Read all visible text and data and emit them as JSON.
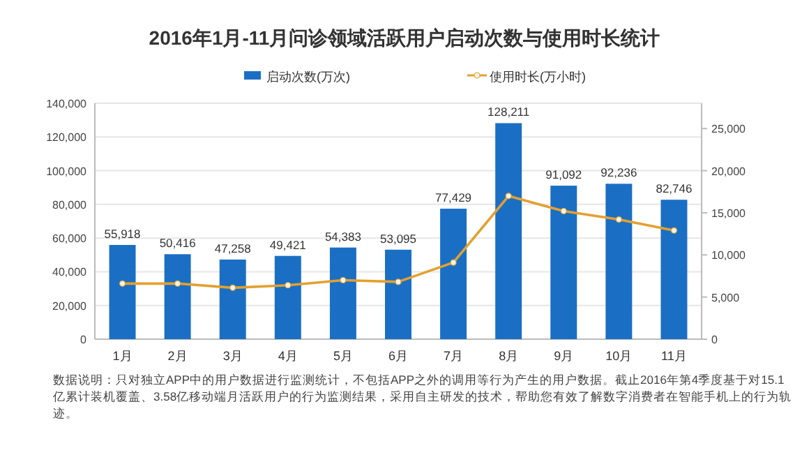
{
  "chart_data": {
    "type": "bar",
    "title": "2016年1月-11月问诊领域活跃用户启动次数与使用时长统计",
    "categories": [
      "1月",
      "2月",
      "3月",
      "4月",
      "5月",
      "6月",
      "7月",
      "8月",
      "9月",
      "10月",
      "11月"
    ],
    "series": [
      {
        "name": "启动次数(万次)",
        "color": "#1a6fc4",
        "values": [
          55918,
          50416,
          47258,
          49421,
          54383,
          53095,
          77429,
          128211,
          91092,
          92236,
          82746
        ],
        "value_labels": [
          "55,918",
          "50,416",
          "47,258",
          "49,421",
          "54,383",
          "53,095",
          "77,429",
          "128,211",
          "91,092",
          "92,236",
          "82,746"
        ]
      },
      {
        "name": "使用时长(万小时)",
        "type": "line",
        "axis": "y2",
        "color": "#e3a030",
        "marker": "circle",
        "values": [
          6600,
          6600,
          6100,
          6400,
          7000,
          6800,
          9100,
          17000,
          15200,
          14200,
          12900
        ]
      }
    ],
    "ylim": [
      0,
      140000
    ],
    "yticks": [
      {
        "value": 0,
        "label": "0"
      },
      {
        "value": 20000,
        "label": "20,000"
      },
      {
        "value": 40000,
        "label": "40,000"
      },
      {
        "value": 60000,
        "label": "60,000"
      },
      {
        "value": 80000,
        "label": "80,000"
      },
      {
        "value": 100000,
        "label": "100,000"
      },
      {
        "value": 120000,
        "label": "120,000"
      },
      {
        "value": 140000,
        "label": "140,000"
      }
    ],
    "y2lim": [
      0,
      28000
    ],
    "y2ticks": [
      {
        "value": 0,
        "label": "0"
      },
      {
        "value": 5000,
        "label": "5,000"
      },
      {
        "value": 10000,
        "label": "10,000"
      },
      {
        "value": 15000,
        "label": "15,000"
      },
      {
        "value": 20000,
        "label": "20,000"
      },
      {
        "value": 25000,
        "label": "25,000"
      }
    ],
    "grid": "y",
    "legend": "top",
    "annotations": [
      "数据说明：只对独立APP中的用户数据进行监测统计，不包括APP之外的调用等行为产生的用户数据。截止2016年第4季度基于对15.1亿累计装机覆盖、3.58亿移动端月活跃用户的行为监测结果，采用自主研发的技术，帮助您有效了解数字消费者在智能手机上的行为轨迹。"
    ]
  }
}
